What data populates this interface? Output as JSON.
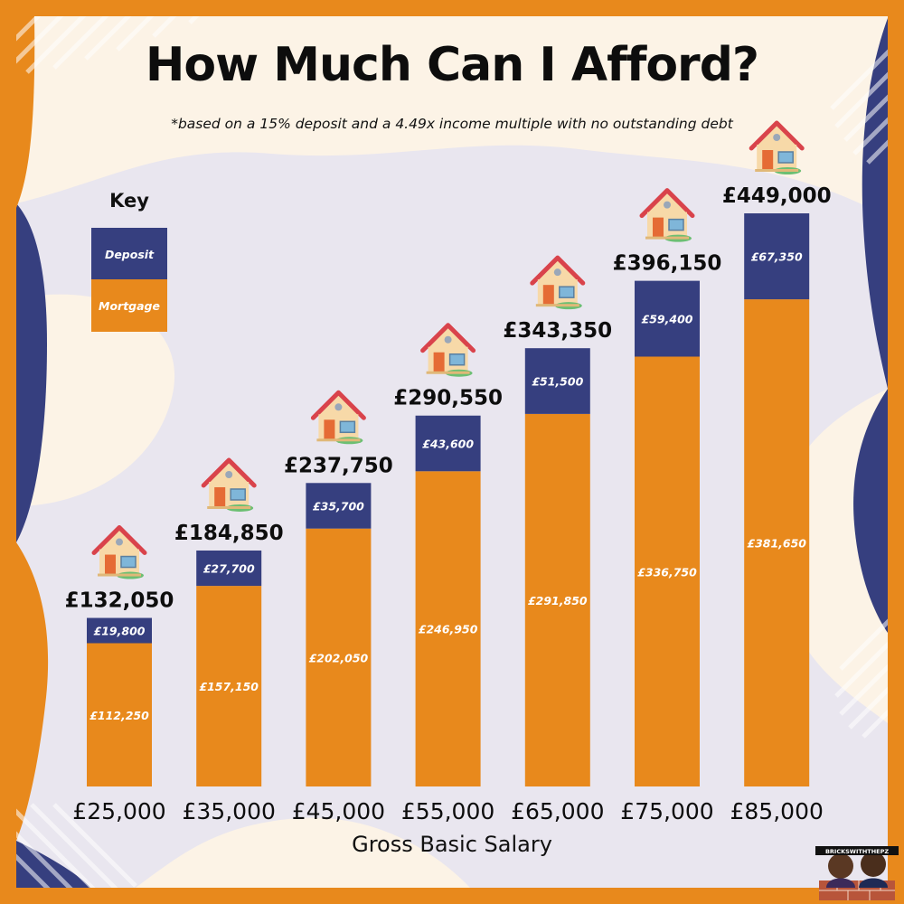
{
  "title": "How Much Can I Afford?",
  "subtitle": "*based on a 15% deposit and a 4.49x income multiple with no outstanding debt",
  "key": {
    "title": "Key",
    "deposit_label": "Deposit",
    "mortgage_label": "Mortgage"
  },
  "colors": {
    "deposit": "#363f7f",
    "mortgage": "#e8891c",
    "background": "#fcf3e6",
    "blob": "#e9e6ef",
    "frame": "#e8891c"
  },
  "logo_text": "BRICKSWITHTHEPZ",
  "chart_data": {
    "type": "bar",
    "stacked": true,
    "title": "How Much Can I Afford?",
    "subtitle": "*based on a 15% deposit and a 4.49x income multiple with no outstanding debt",
    "xlabel": "Gross Basic Salary",
    "ylabel": "",
    "categories": [
      "£25,000",
      "£35,000",
      "£45,000",
      "£55,000",
      "£65,000",
      "£75,000",
      "£85,000"
    ],
    "series": [
      {
        "name": "Mortgage",
        "values": [
          112250,
          157150,
          202050,
          246950,
          291850,
          336750,
          381650
        ],
        "labels": [
          "£112,250",
          "£157,150",
          "£202,050",
          "£246,950",
          "£291,850",
          "£336,750",
          "£381,650"
        ]
      },
      {
        "name": "Deposit",
        "values": [
          19800,
          27700,
          35700,
          43600,
          51500,
          59400,
          67350
        ],
        "labels": [
          "£19,800",
          "£27,700",
          "£35,700",
          "£43,600",
          "£51,500",
          "£59,400",
          "£67,350"
        ]
      }
    ],
    "totals": [
      132050,
      184850,
      237750,
      290550,
      343350,
      396150,
      449000
    ],
    "total_labels": [
      "£132,050",
      "£184,850",
      "£237,750",
      "£290,550",
      "£343,350",
      "£396,150",
      "£449,000"
    ],
    "ylim": [
      0,
      449000
    ],
    "grid": false,
    "legend": "top-left"
  }
}
